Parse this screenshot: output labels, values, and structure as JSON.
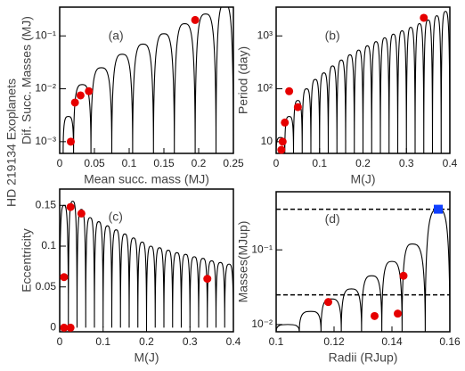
{
  "side_label": "HD 219134 Exoplanets",
  "chart_data": [
    {
      "type": "scatter",
      "panel_label": "(a)",
      "xlabel": "Mean succ. mass (MJ)",
      "ylabel": "Dif. Succ. Masses (MJ)",
      "xlim": [
        0,
        0.25
      ],
      "ylim": [
        0.0006,
        0.35
      ],
      "log_y": true,
      "xticks": [
        0,
        0.05,
        0.1,
        0.15,
        0.2,
        0.25
      ],
      "yticks": [
        {
          "value": 0.001,
          "label": "10⁻³"
        },
        {
          "value": 0.01,
          "label": "10⁻²"
        },
        {
          "value": 0.1,
          "label": "10⁻¹"
        }
      ],
      "arcs": {
        "color": "#000000",
        "x": [
          0.005,
          0.0125,
          0.02,
          0.0325,
          0.045,
          0.06,
          0.075,
          0.09,
          0.105,
          0.12,
          0.135,
          0.15,
          0.165,
          0.18,
          0.195,
          0.21,
          0.225,
          0.2375,
          0.25
        ],
        "values": [
          0.0006,
          0.003,
          0.0006,
          0.012,
          0.0006,
          0.025,
          0.0006,
          0.045,
          0.0006,
          0.07,
          0.0006,
          0.11,
          0.0006,
          0.17,
          0.0006,
          0.26,
          0.0006,
          0.4,
          0.0006
        ]
      },
      "points": {
        "color": "#e60000",
        "x": [
          0.016,
          0.022,
          0.03,
          0.042,
          0.195
        ],
        "values": [
          0.001,
          0.0055,
          0.0075,
          0.009,
          0.2
        ]
      }
    },
    {
      "type": "scatter",
      "panel_label": "(b)",
      "xlabel": "M(J)",
      "ylabel": "Period (day)",
      "xlim": [
        0,
        0.4
      ],
      "ylim": [
        6,
        3500
      ],
      "log_y": true,
      "xticks": [
        0,
        0.1,
        0.2,
        0.3,
        0.4
      ],
      "yticks": [
        10,
        {
          "value": 100,
          "label": "10²"
        },
        {
          "value": 1000,
          "label": "10³"
        }
      ],
      "arcs": {
        "color": "#000000",
        "x": [
          0,
          0.01,
          0.02,
          0.03,
          0.04,
          0.05,
          0.06,
          0.07,
          0.08,
          0.09,
          0.1,
          0.11,
          0.12,
          0.13,
          0.14,
          0.15,
          0.16,
          0.17,
          0.18,
          0.19,
          0.2,
          0.21,
          0.22,
          0.23,
          0.24,
          0.25,
          0.26,
          0.27,
          0.28,
          0.29,
          0.3,
          0.31,
          0.32,
          0.33,
          0.34,
          0.35,
          0.36,
          0.37,
          0.38,
          0.39,
          0.4
        ],
        "values": [
          6,
          12,
          6,
          30,
          6,
          60,
          6,
          100,
          6,
          150,
          6,
          200,
          6,
          270,
          6,
          350,
          6,
          440,
          6,
          540,
          6,
          650,
          6,
          780,
          6,
          920,
          6,
          1080,
          6,
          1250,
          6,
          1450,
          6,
          1700,
          6,
          2000,
          6,
          2400,
          6,
          2900,
          6
        ]
      },
      "points": {
        "color": "#e60000",
        "x": [
          0.012,
          0.015,
          0.02,
          0.03,
          0.05,
          0.34
        ],
        "values": [
          7,
          10,
          23,
          90,
          45,
          2200
        ]
      }
    },
    {
      "type": "scatter",
      "panel_label": "(c)",
      "xlabel": "M(J)",
      "ylabel": "Eccentricity",
      "xlim": [
        0,
        0.4
      ],
      "ylim": [
        -0.005,
        0.17
      ],
      "log_y": false,
      "xticks": [
        0,
        0.1,
        0.2,
        0.3,
        0.4
      ],
      "yticks": [
        0,
        0.05,
        0.1,
        0.15
      ],
      "arcs": {
        "color": "#000000",
        "x": [
          0,
          0.01,
          0.02,
          0.03,
          0.04,
          0.05,
          0.06,
          0.07,
          0.08,
          0.09,
          0.1,
          0.11,
          0.12,
          0.13,
          0.14,
          0.15,
          0.16,
          0.17,
          0.18,
          0.19,
          0.2,
          0.21,
          0.22,
          0.23,
          0.24,
          0.25,
          0.26,
          0.27,
          0.28,
          0.29,
          0.3,
          0.31,
          0.32,
          0.33,
          0.34,
          0.35,
          0.36,
          0.37,
          0.38,
          0.39,
          0.4
        ],
        "values": [
          0,
          0.15,
          0,
          0.155,
          0,
          0.145,
          0,
          0.135,
          0,
          0.13,
          0,
          0.125,
          0,
          0.12,
          0,
          0.115,
          0,
          0.11,
          0,
          0.105,
          0,
          0.1,
          0,
          0.098,
          0,
          0.095,
          0,
          0.092,
          0,
          0.09,
          0,
          0.087,
          0,
          0.085,
          0,
          0.082,
          0,
          0.08,
          0,
          0.078,
          0
        ]
      },
      "points": {
        "color": "#e60000",
        "x": [
          0.01,
          0.01,
          0.025,
          0.025,
          0.05,
          0.34
        ],
        "values": [
          0.062,
          0,
          0,
          0.148,
          0.14,
          0.06
        ]
      }
    },
    {
      "type": "scatter",
      "panel_label": "(d)",
      "xlabel": "Radii (RJup)",
      "ylabel": "Masses(MJup)",
      "xlim": [
        0.1,
        0.16
      ],
      "ylim": [
        0.008,
        0.6
      ],
      "log_y": true,
      "xticks": [
        0.1,
        0.12,
        0.14,
        0.16
      ],
      "yticks": [
        {
          "value": 0.01,
          "label": "10⁻²"
        },
        {
          "value": 0.1,
          "label": "10⁻¹"
        }
      ],
      "arcs": {
        "color": "#000000",
        "x": [
          0.1,
          0.104,
          0.108,
          0.112,
          0.1155,
          0.119,
          0.1225,
          0.126,
          0.1295,
          0.133,
          0.1365,
          0.14,
          0.1435,
          0.147,
          0.1515,
          0.156,
          0.16
        ],
        "values": [
          0.008,
          0.01,
          0.008,
          0.015,
          0.008,
          0.022,
          0.008,
          0.03,
          0.008,
          0.045,
          0.008,
          0.07,
          0.008,
          0.12,
          0.008,
          0.35,
          0.008
        ]
      },
      "points": {
        "color": "#e60000",
        "x": [
          0.118,
          0.134,
          0.142,
          0.144
        ],
        "values": [
          0.02,
          0.013,
          0.014,
          0.045
        ]
      },
      "hlines": [
        0.35,
        0.025
      ],
      "square": {
        "color": "#1040ff",
        "x": 0.156,
        "value": 0.35
      }
    }
  ]
}
